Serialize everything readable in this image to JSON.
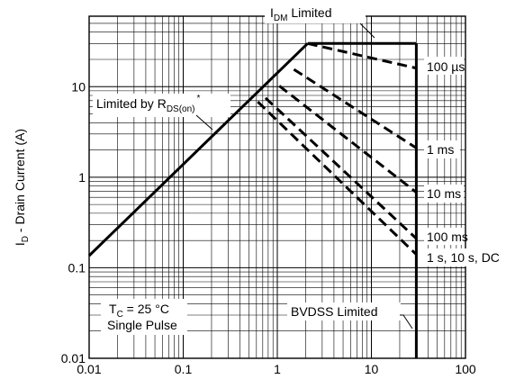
{
  "chart_data": {
    "type": "line",
    "x_scale": "log",
    "y_scale": "log",
    "xlim": [
      0.01,
      100
    ],
    "ylim": [
      0.01,
      60
    ],
    "grid": true,
    "x_ticks": [
      "0.01",
      "0.1",
      "1",
      "10",
      "100"
    ],
    "y_ticks": [
      "0.01",
      "0.1",
      "1",
      "10"
    ],
    "ylabel": {
      "prefix": "I",
      "subscript": "D",
      "suffix": " - Drain Current (A)"
    },
    "boundaries": [
      {
        "name": "Limited by RDS(on)",
        "style": "solid",
        "x": [
          0.01,
          2.1
        ],
        "y": [
          0.136,
          30
        ]
      },
      {
        "name": "IDM Limited",
        "style": "solid",
        "x": [
          2.1,
          30
        ],
        "y": [
          30,
          30
        ]
      },
      {
        "name": "BVDSS Limited",
        "style": "solid",
        "x": [
          30,
          30
        ],
        "y": [
          30,
          0.01
        ]
      }
    ],
    "series": [
      {
        "name": "100 µs",
        "style": "dashed",
        "x": [
          2.1,
          30
        ],
        "y": [
          30,
          16
        ]
      },
      {
        "name": "1 ms",
        "style": "dashed",
        "x": [
          1.5,
          30
        ],
        "y": [
          15.5,
          2.1
        ]
      },
      {
        "name": "10 ms",
        "style": "dashed",
        "x": [
          1.05,
          30
        ],
        "y": [
          10.2,
          0.68
        ]
      },
      {
        "name": "100 ms",
        "style": "dashed",
        "x": [
          0.75,
          30
        ],
        "y": [
          7.5,
          0.21
        ]
      },
      {
        "name": "1 s, 10 s, DC",
        "style": "dashed",
        "x": [
          0.62,
          30
        ],
        "y": [
          6.8,
          0.14
        ]
      }
    ],
    "annotations": {
      "idm": {
        "main": "I",
        "sub": "DM",
        "rest": " Limited"
      },
      "rds": {
        "main": "Limited by R",
        "sub": "DS(on)",
        "sup": "*"
      },
      "bvdss": "BVDSS Limited",
      "tc": {
        "main": "T",
        "sub": "C",
        "rest": " = 25 °C"
      },
      "pulse": "Single Pulse",
      "pulse_labels": [
        "100 µs",
        "1 ms",
        "10 ms",
        "100 ms",
        "1 s, 10 s, DC"
      ]
    }
  }
}
